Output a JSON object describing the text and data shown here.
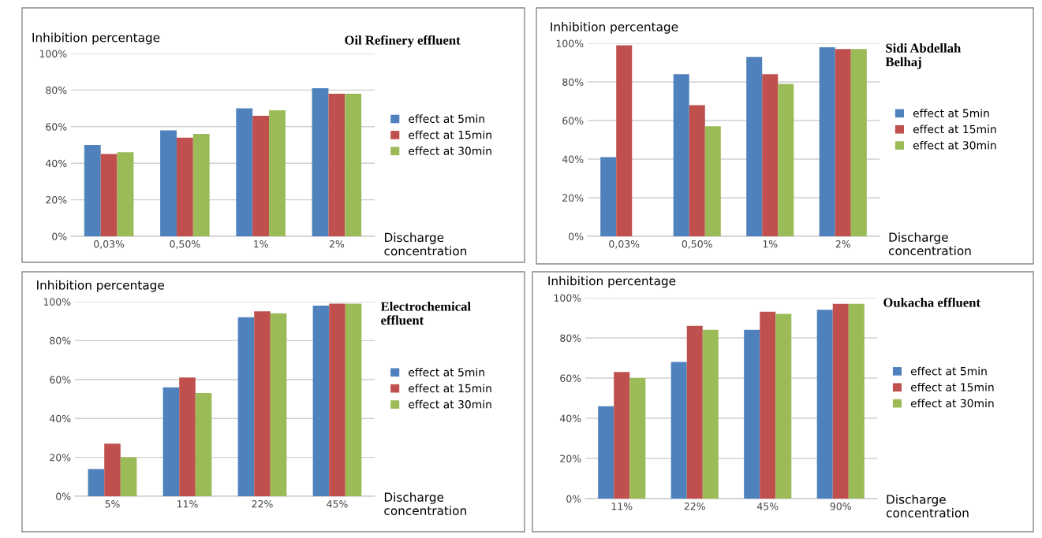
{
  "chart_data": [
    {
      "type": "bar",
      "title": "Oil Refinery effluent",
      "ylabel": "Inhibition percentage",
      "xlabel": "Discharge\nconcentration",
      "categories": [
        "0,03%",
        "0,50%",
        "1%",
        "2%"
      ],
      "series": [
        {
          "name": "effect at 5min",
          "color": "#4f81bd",
          "values": [
            50,
            58,
            70,
            81
          ]
        },
        {
          "name": "effect at 15min",
          "color": "#c0504d",
          "values": [
            45,
            54,
            66,
            78
          ]
        },
        {
          "name": "effect at 30min",
          "color": "#9bbb59",
          "values": [
            46,
            56,
            69,
            78
          ]
        }
      ],
      "ylim": [
        0,
        100
      ],
      "yticks": [
        {
          "value": 0,
          "label": "0%"
        },
        {
          "value": 20,
          "label": "20%"
        },
        {
          "value": 40,
          "label": "40%"
        },
        {
          "value": 60,
          "label": "60%"
        },
        {
          "value": 80,
          "label": "80%"
        },
        {
          "value": 100,
          "label": "100%"
        }
      ],
      "grid": "y",
      "legend": "right"
    },
    {
      "type": "bar",
      "title": "Sidi Abdellah\nBelhaj",
      "ylabel": "Inhibition percentage",
      "xlabel": "Discharge\nconcentration",
      "categories": [
        "0,03%",
        "0,50%",
        "1%",
        "2%"
      ],
      "series": [
        {
          "name": "effect at 5min",
          "color": "#4f81bd",
          "values": [
            41,
            84,
            93,
            98
          ]
        },
        {
          "name": "effect at 15min",
          "color": "#c0504d",
          "values": [
            99,
            68,
            84,
            97
          ]
        },
        {
          "name": "effect at 30min",
          "color": "#9bbb59",
          "values": [
            null,
            57,
            79,
            97
          ]
        }
      ],
      "ylim": [
        0,
        100
      ],
      "yticks": [
        {
          "value": 0,
          "label": "0%"
        },
        {
          "value": 20,
          "label": "20%"
        },
        {
          "value": 40,
          "label": "40%"
        },
        {
          "value": 60,
          "label": "60%"
        },
        {
          "value": 80,
          "label": "80%"
        },
        {
          "value": 100,
          "label": "100%"
        }
      ],
      "grid": "y",
      "legend": "right"
    },
    {
      "type": "bar",
      "title": "Electrochemical\neffluent",
      "ylabel": "Inhibition percentage",
      "xlabel": "Discharge\nconcentration",
      "categories": [
        "5%",
        "11%",
        "22%",
        "45%"
      ],
      "series": [
        {
          "name": "effect at 5min",
          "color": "#4f81bd",
          "values": [
            14,
            56,
            92,
            98
          ]
        },
        {
          "name": "effect at 15min",
          "color": "#c0504d",
          "values": [
            27,
            61,
            95,
            99
          ]
        },
        {
          "name": "effect at 30min",
          "color": "#9bbb59",
          "values": [
            20,
            53,
            94,
            99
          ]
        }
      ],
      "ylim": [
        0,
        100
      ],
      "yticks": [
        {
          "value": 0,
          "label": "0%"
        },
        {
          "value": 20,
          "label": "20%"
        },
        {
          "value": 40,
          "label": "40%"
        },
        {
          "value": 60,
          "label": "60%"
        },
        {
          "value": 80,
          "label": "80%"
        },
        {
          "value": 100,
          "label": "100%"
        }
      ],
      "grid": "y",
      "legend": "right"
    },
    {
      "type": "bar",
      "title": "Oukacha effluent",
      "ylabel": "Inhibition percentage",
      "xlabel": "Discharge\nconcentration",
      "categories": [
        "11%",
        "22%",
        "45%",
        "90%"
      ],
      "series": [
        {
          "name": "effect at 5min",
          "color": "#4f81bd",
          "values": [
            46,
            68,
            84,
            94
          ]
        },
        {
          "name": "effect at 15min",
          "color": "#c0504d",
          "values": [
            63,
            86,
            93,
            97
          ]
        },
        {
          "name": "effect at 30min",
          "color": "#9bbb59",
          "values": [
            60,
            84,
            92,
            97
          ]
        }
      ],
      "ylim": [
        0,
        100
      ],
      "yticks": [
        {
          "value": 0,
          "label": "0%"
        },
        {
          "value": 20,
          "label": "20%"
        },
        {
          "value": 40,
          "label": "40%"
        },
        {
          "value": 60,
          "label": "60%"
        },
        {
          "value": 80,
          "label": "80%"
        },
        {
          "value": 100,
          "label": "100%"
        }
      ],
      "grid": "y",
      "legend": "right"
    }
  ]
}
